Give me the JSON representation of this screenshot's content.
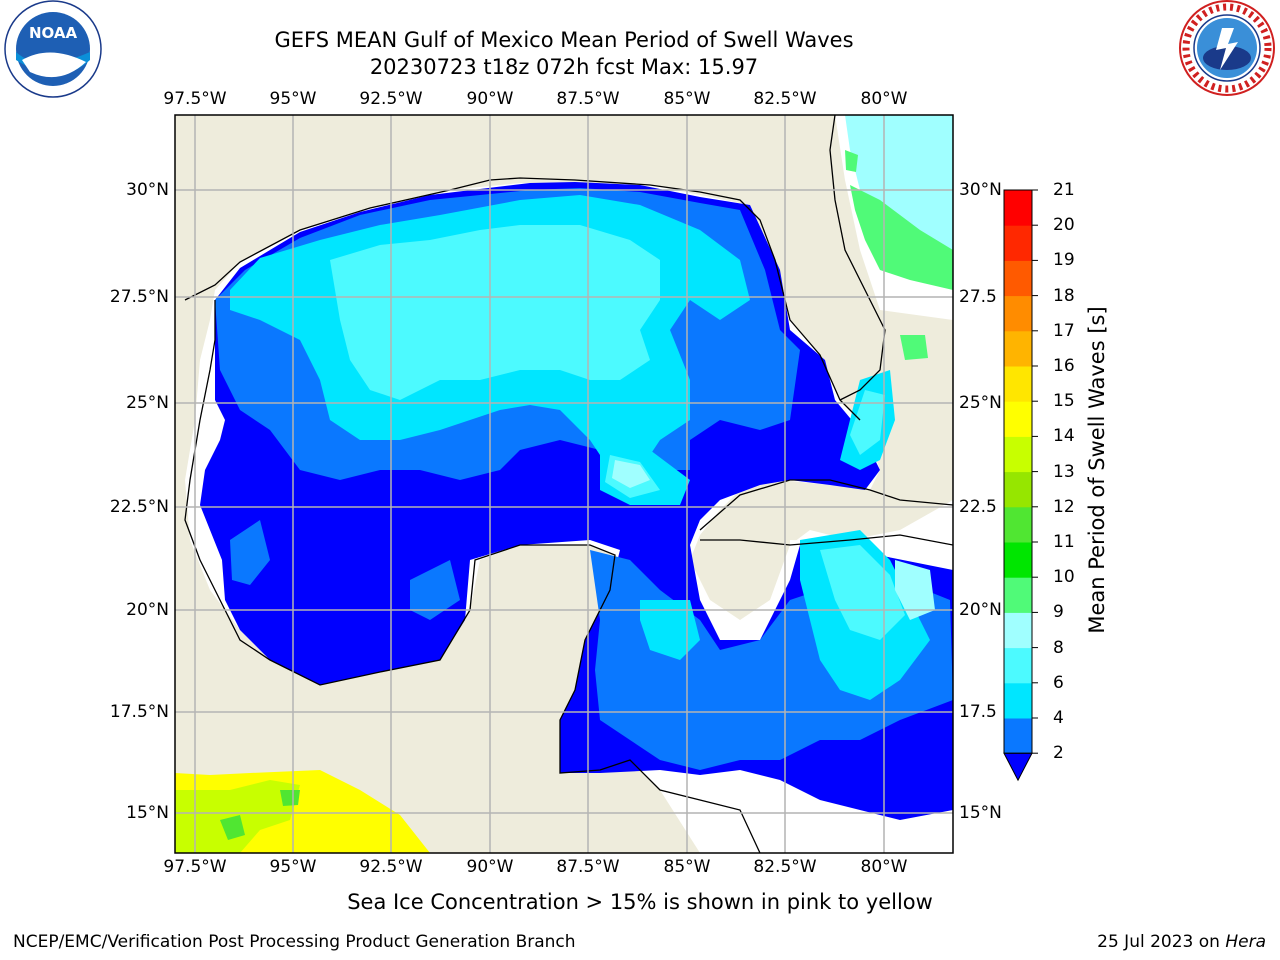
{
  "title_line1": "GEFS MEAN Gulf of Mexico Mean Period of Swell Waves",
  "title_line2": "20230723 t18z 072h fcst   Max: 15.97",
  "logos": {
    "left": "noaa-logo",
    "right": "nws-logo"
  },
  "map": {
    "lon_labels": [
      "97.5°W",
      "95°W",
      "92.5°W",
      "90°W",
      "87.5°W",
      "85°W",
      "82.5°W",
      "80°W"
    ],
    "lat_labels_left": [
      "30°N",
      "27.5°N",
      "25°N",
      "22.5°N",
      "20°N",
      "17.5°N",
      "15°N"
    ],
    "lat_labels_right": [
      "30°N",
      "27.5",
      "25°N",
      "22.5",
      "20°N",
      "17.5",
      "15°N"
    ],
    "land_color": "#eeecdc",
    "grid_color": "#b4b4b4"
  },
  "colorbar": {
    "label": "Mean Period of Swell Waves [s]",
    "ticks": [
      "2",
      "4",
      "6",
      "8",
      "9",
      "10",
      "11",
      "12",
      "13",
      "14",
      "15",
      "16",
      "17",
      "18",
      "19",
      "20",
      "21"
    ],
    "colors": [
      "#0000ff",
      "#0a78ff",
      "#00e6ff",
      "#4cfaff",
      "#a0ffff",
      "#50fa78",
      "#00e600",
      "#50e632",
      "#96e600",
      "#c8ff00",
      "#ffff00",
      "#ffe600",
      "#ffb400",
      "#ff8c00",
      "#ff5a00",
      "#ff2800",
      "#ff0000"
    ]
  },
  "note": "Sea Ice Concentration > 15% is shown in pink to yellow",
  "footer": {
    "left": "NCEP/EMC/Verification Post Processing Product Generation Branch",
    "date": "25 Jul 2023 on ",
    "host": "Hera"
  }
}
